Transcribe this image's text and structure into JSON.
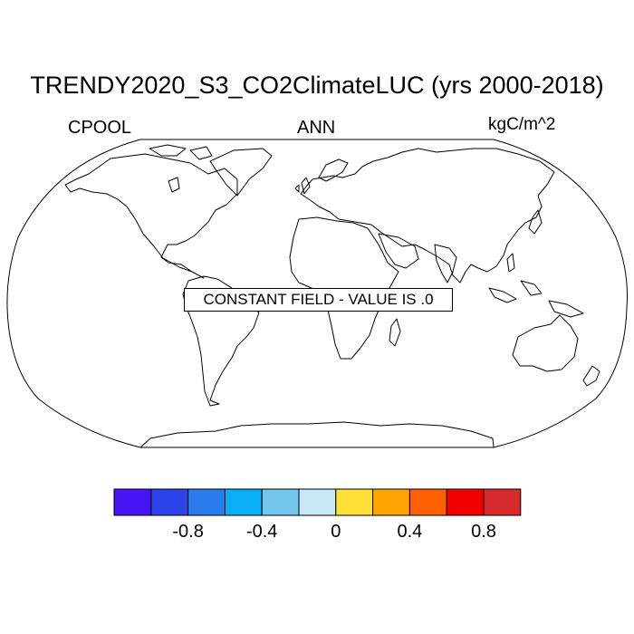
{
  "title": "TRENDY2020_S3_CO2ClimateLUC (yrs 2000-2018)",
  "left_label": "CPOOL",
  "center_label": "ANN",
  "units_label": "kgC/m^2",
  "annotation": "CONSTANT FIELD - VALUE IS .0",
  "map": {
    "projection": "robinson",
    "features": "coastlines"
  },
  "colorbar": {
    "colors": [
      "#4714f5",
      "#2b43e8",
      "#2a7ced",
      "#0aaef6",
      "#75c6ef",
      "#c9e7f7",
      "#ffe036",
      "#ffa400",
      "#ff5f00",
      "#f20000",
      "#d62a2d"
    ],
    "tick_labels": [
      {
        "label": "-0.8",
        "boundary": 2
      },
      {
        "label": "-0.4",
        "boundary": 4
      },
      {
        "label": "0",
        "boundary": 6
      },
      {
        "label": "0.4",
        "boundary": 8
      },
      {
        "label": "0.8",
        "boundary": 10
      }
    ]
  }
}
